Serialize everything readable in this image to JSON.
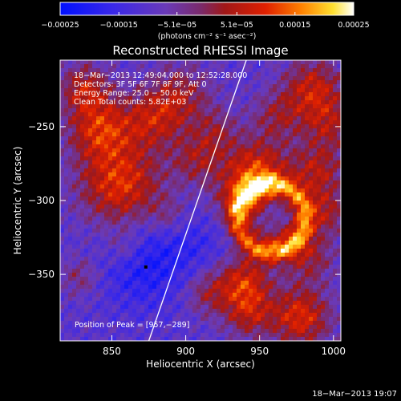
{
  "chart_data": {
    "type": "heatmap",
    "title": "Reconstructed RHESSI Image",
    "xlabel": "Heliocentric X (arcsec)",
    "ylabel": "Heliocentric Y (arcsec)",
    "xlim": [
      815,
      1005
    ],
    "ylim": [
      -395,
      -205
    ],
    "x_ticks": [
      850,
      900,
      950,
      1000
    ],
    "x_tick_labels": [
      "850",
      "900",
      "950",
      "1000"
    ],
    "y_ticks": [
      -350,
      -300,
      -250
    ],
    "y_tick_labels": [
      "−350",
      "−300",
      "−250"
    ],
    "colorbar": {
      "range": [
        -0.00025,
        0.00025
      ],
      "ticks": [
        -0.00025,
        -0.00015,
        -5.1e-05,
        5.1e-05,
        0.00015,
        0.00025
      ],
      "tick_labels": [
        "−0.00025",
        "−0.00015",
        "−5.1e−05",
        "5.1e−05",
        "0.00015",
        "0.00025"
      ],
      "unit_label": "(photons cm⁻² s⁻¹ asec⁻²)",
      "colormap": "rainbow-blue-purple-red-yellow-white"
    },
    "annotations": [
      "18−Mar−2013 12:49:04.000 to 12:52:28.000",
      "Detectors: 3F 5F 6F 7F 8F 9F, Att 0",
      "Energy Range: 25.0 − 50.0 keV",
      "Clean    Total counts: 5.82E+03"
    ],
    "peak_label": "Position of Peak = [957,−289]",
    "peak_position": [
      957,
      -289
    ],
    "limb_line": [
      [
        875,
        -395
      ],
      [
        941,
        -205
      ]
    ],
    "low_marker": [
      873,
      -345
    ]
  },
  "footer": {
    "timestamp": "18−Mar−2013 19:07"
  }
}
